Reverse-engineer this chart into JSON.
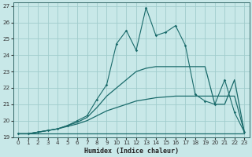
{
  "xlabel": "Humidex (Indice chaleur)",
  "xlim": [
    -0.5,
    23.5
  ],
  "ylim": [
    19,
    27.2
  ],
  "yticks": [
    19,
    20,
    21,
    22,
    23,
    24,
    25,
    26,
    27
  ],
  "xticks": [
    0,
    1,
    2,
    3,
    4,
    5,
    6,
    7,
    8,
    9,
    10,
    11,
    12,
    13,
    14,
    15,
    16,
    17,
    18,
    19,
    20,
    21,
    22,
    23
  ],
  "bg_color": "#c8e8e8",
  "grid_color": "#a0cccc",
  "line_color": "#1a6b6b",
  "curves": {
    "jagged": [
      [
        0,
        19.2
      ],
      [
        1,
        19.2
      ],
      [
        2,
        19.3
      ],
      [
        3,
        19.4
      ],
      [
        4,
        19.5
      ],
      [
        5,
        19.7
      ],
      [
        6,
        20.0
      ],
      [
        7,
        20.3
      ],
      [
        8,
        21.3
      ],
      [
        9,
        22.2
      ],
      [
        10,
        24.7
      ],
      [
        11,
        25.5
      ],
      [
        12,
        24.3
      ],
      [
        13,
        26.9
      ],
      [
        14,
        25.2
      ],
      [
        15,
        25.4
      ],
      [
        16,
        25.8
      ],
      [
        17,
        24.6
      ],
      [
        18,
        21.6
      ],
      [
        19,
        21.2
      ],
      [
        20,
        21.0
      ],
      [
        21,
        22.5
      ],
      [
        22,
        20.5
      ],
      [
        23,
        19.3
      ]
    ],
    "high_envelope": [
      [
        0,
        19.2
      ],
      [
        1,
        19.2
      ],
      [
        2,
        19.3
      ],
      [
        3,
        19.4
      ],
      [
        4,
        19.5
      ],
      [
        5,
        19.7
      ],
      [
        6,
        19.9
      ],
      [
        7,
        20.2
      ],
      [
        8,
        20.8
      ],
      [
        9,
        21.5
      ],
      [
        10,
        22.0
      ],
      [
        11,
        22.5
      ],
      [
        12,
        23.0
      ],
      [
        13,
        23.2
      ],
      [
        14,
        23.3
      ],
      [
        15,
        23.3
      ],
      [
        16,
        23.3
      ],
      [
        17,
        23.3
      ],
      [
        18,
        23.3
      ],
      [
        19,
        23.3
      ],
      [
        20,
        21.0
      ],
      [
        21,
        21.0
      ],
      [
        22,
        22.5
      ],
      [
        23,
        19.3
      ]
    ],
    "mid_envelope": [
      [
        0,
        19.2
      ],
      [
        1,
        19.2
      ],
      [
        2,
        19.3
      ],
      [
        3,
        19.4
      ],
      [
        4,
        19.5
      ],
      [
        5,
        19.65
      ],
      [
        6,
        19.8
      ],
      [
        7,
        20.0
      ],
      [
        8,
        20.3
      ],
      [
        9,
        20.6
      ],
      [
        10,
        20.8
      ],
      [
        11,
        21.0
      ],
      [
        12,
        21.2
      ],
      [
        13,
        21.3
      ],
      [
        14,
        21.4
      ],
      [
        15,
        21.45
      ],
      [
        16,
        21.5
      ],
      [
        17,
        21.5
      ],
      [
        18,
        21.5
      ],
      [
        19,
        21.5
      ],
      [
        20,
        21.5
      ],
      [
        21,
        21.5
      ],
      [
        22,
        21.5
      ],
      [
        23,
        19.3
      ]
    ],
    "flat_baseline": [
      [
        0,
        19.2
      ],
      [
        1,
        19.2
      ],
      [
        2,
        19.2
      ],
      [
        3,
        19.2
      ],
      [
        4,
        19.2
      ],
      [
        5,
        19.2
      ],
      [
        6,
        19.2
      ],
      [
        7,
        19.2
      ],
      [
        8,
        19.2
      ],
      [
        9,
        19.2
      ],
      [
        10,
        19.2
      ],
      [
        11,
        19.2
      ],
      [
        12,
        19.2
      ],
      [
        13,
        19.2
      ],
      [
        14,
        19.2
      ],
      [
        15,
        19.2
      ],
      [
        16,
        19.2
      ],
      [
        17,
        19.2
      ],
      [
        18,
        19.2
      ],
      [
        19,
        19.2
      ],
      [
        20,
        19.2
      ],
      [
        21,
        19.2
      ],
      [
        22,
        19.2
      ],
      [
        23,
        19.2
      ]
    ]
  }
}
